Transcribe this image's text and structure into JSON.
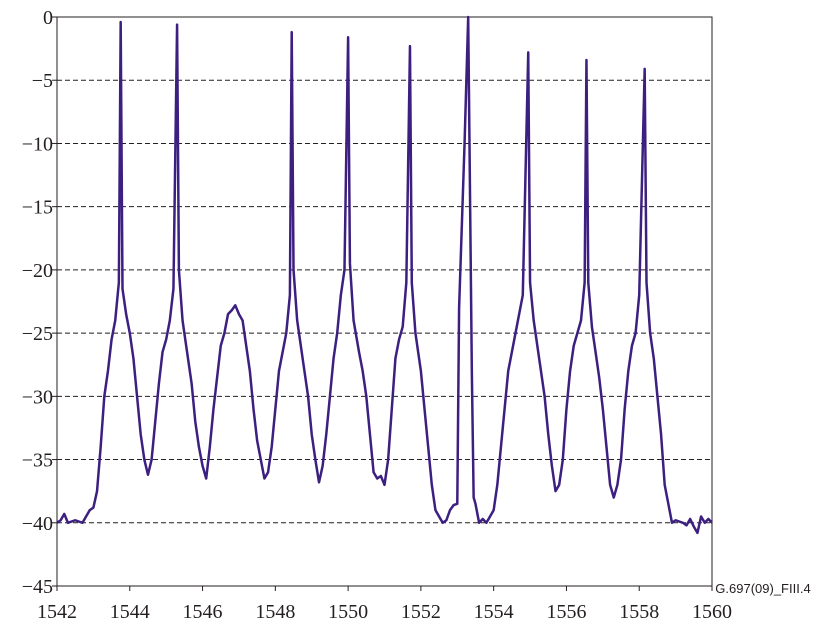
{
  "chart_data": {
    "type": "line",
    "annotation": "G.697(09)_FIII.4",
    "color": "#3d1f80",
    "grid": true,
    "xlim": [
      1542,
      1560
    ],
    "xticks": [
      1542,
      1544,
      1546,
      1548,
      1550,
      1552,
      1554,
      1556,
      1558,
      1560
    ],
    "ylim": [
      -45,
      0
    ],
    "yticks": [
      {
        "value": -45,
        "label": "−45"
      },
      {
        "value": -40,
        "label": "−40"
      },
      {
        "value": -35,
        "label": "−35"
      },
      {
        "value": -30,
        "label": "−30"
      },
      {
        "value": -25,
        "label": "−25"
      },
      {
        "value": -20,
        "label": "−20"
      },
      {
        "value": -15,
        "label": "−15"
      },
      {
        "value": -10,
        "label": "−10"
      },
      {
        "value": -5,
        "label": "−5"
      },
      0
    ],
    "x": [
      1542,
      1542.1,
      1542.2,
      1542.3,
      1542.5,
      1542.7,
      1542.9,
      1543,
      1543.1,
      1543.2,
      1543.3,
      1543.4,
      1543.5,
      1543.6,
      1543.7,
      1543.75,
      1543.8,
      1543.9,
      1544,
      1544.1,
      1544.2,
      1544.3,
      1544.4,
      1544.5,
      1544.6,
      1544.7,
      1544.8,
      1544.9,
      1545,
      1545.1,
      1545.2,
      1545.3,
      1545.35,
      1545.45,
      1545.55,
      1545.7,
      1545.8,
      1545.9,
      1546,
      1546.1,
      1546.2,
      1546.3,
      1546.4,
      1546.5,
      1546.6,
      1546.7,
      1546.8,
      1546.9,
      1547,
      1547.1,
      1547.2,
      1547.3,
      1547.4,
      1547.5,
      1547.6,
      1547.7,
      1547.8,
      1547.9,
      1548,
      1548.1,
      1548.2,
      1548.3,
      1548.4,
      1548.45,
      1548.5,
      1548.6,
      1548.7,
      1548.8,
      1548.9,
      1549,
      1549.1,
      1549.2,
      1549.3,
      1549.4,
      1549.5,
      1549.6,
      1549.7,
      1549.8,
      1549.9,
      1550,
      1550.05,
      1550.15,
      1550.3,
      1550.4,
      1550.5,
      1550.6,
      1550.7,
      1550.8,
      1550.9,
      1551,
      1551.1,
      1551.2,
      1551.3,
      1551.4,
      1551.5,
      1551.6,
      1551.7,
      1551.75,
      1551.85,
      1552,
      1552.1,
      1552.2,
      1552.3,
      1552.4,
      1552.5,
      1552.6,
      1552.7,
      1552.8,
      1552.9,
      1553,
      1553.05,
      1553.2,
      1553.3,
      1553.4,
      1553.45,
      1553.5,
      1553.6,
      1553.7,
      1553.8,
      1553.9,
      1554,
      1554.1,
      1554.2,
      1554.3,
      1554.4,
      1554.5,
      1554.6,
      1554.7,
      1554.8,
      1554.95,
      1555,
      1555.1,
      1555.2,
      1555.3,
      1555.4,
      1555.5,
      1555.6,
      1555.7,
      1555.8,
      1555.9,
      1556,
      1556.1,
      1556.2,
      1556.3,
      1556.4,
      1556.5,
      1556.55,
      1556.6,
      1556.7,
      1556.8,
      1556.9,
      1557,
      1557.1,
      1557.2,
      1557.3,
      1557.4,
      1557.5,
      1557.6,
      1557.7,
      1557.8,
      1557.9,
      1558,
      1558.15,
      1558.2,
      1558.3,
      1558.4,
      1558.5,
      1558.6,
      1558.7,
      1558.8,
      1558.9,
      1559,
      1559.2,
      1559.3,
      1559.4,
      1559.5,
      1559.6,
      1559.7,
      1559.8,
      1559.9,
      1560
    ],
    "values": [
      -40,
      -39.8,
      -39.3,
      -40,
      -39.8,
      -40,
      -39,
      -38.8,
      -37.5,
      -34,
      -30,
      -28,
      -25.5,
      -24,
      -21,
      -0.4,
      -21.5,
      -23.5,
      -25,
      -27,
      -30,
      -33,
      -35,
      -36.2,
      -35,
      -32,
      -29,
      -26.5,
      -25.5,
      -24,
      -21.5,
      -0.6,
      -20,
      -24,
      -26,
      -29,
      -32,
      -34,
      -35.5,
      -36.5,
      -34,
      -31,
      -28.5,
      -26,
      -25,
      -23.5,
      -23.2,
      -22.8,
      -23.5,
      -24,
      -26,
      -28,
      -31,
      -33.5,
      -35,
      -36.5,
      -36,
      -34,
      -31,
      -28,
      -26.5,
      -25,
      -22,
      -1.2,
      -20,
      -24,
      -26,
      -28,
      -30,
      -33,
      -35,
      -36.8,
      -35.5,
      -33,
      -30,
      -27,
      -25,
      -22,
      -20,
      -1.6,
      -19.5,
      -24,
      -26.5,
      -28,
      -30,
      -33,
      -36,
      -36.5,
      -36.3,
      -37,
      -35,
      -31,
      -27,
      -25.5,
      -24.5,
      -21,
      -2.3,
      -21,
      -25,
      -28,
      -31,
      -34,
      -37,
      -39,
      -39.5,
      -40,
      -39.8,
      -39,
      -38.6,
      -38.5,
      -23,
      -10,
      0,
      -28,
      -38,
      -38.5,
      -40,
      -39.7,
      -40,
      -39.5,
      -39,
      -37,
      -34,
      -31,
      -28,
      -26.5,
      -25,
      -23.5,
      -22,
      -2.8,
      -21,
      -24,
      -26,
      -28,
      -30,
      -33,
      -35.5,
      -37.5,
      -37,
      -35,
      -31,
      -28,
      -26,
      -25,
      -24,
      -21,
      -3.4,
      -21,
      -24.5,
      -26.5,
      -28.5,
      -31,
      -34,
      -37,
      -38,
      -37,
      -35,
      -31,
      -28,
      -26,
      -25,
      -22,
      -4.1,
      -21,
      -25,
      -27,
      -30,
      -33,
      -37,
      -38.5,
      -40,
      -39.8,
      -40,
      -40.2,
      -39.7,
      -40.3,
      -40.8,
      -39.5,
      -40,
      -39.7,
      -40
    ]
  }
}
